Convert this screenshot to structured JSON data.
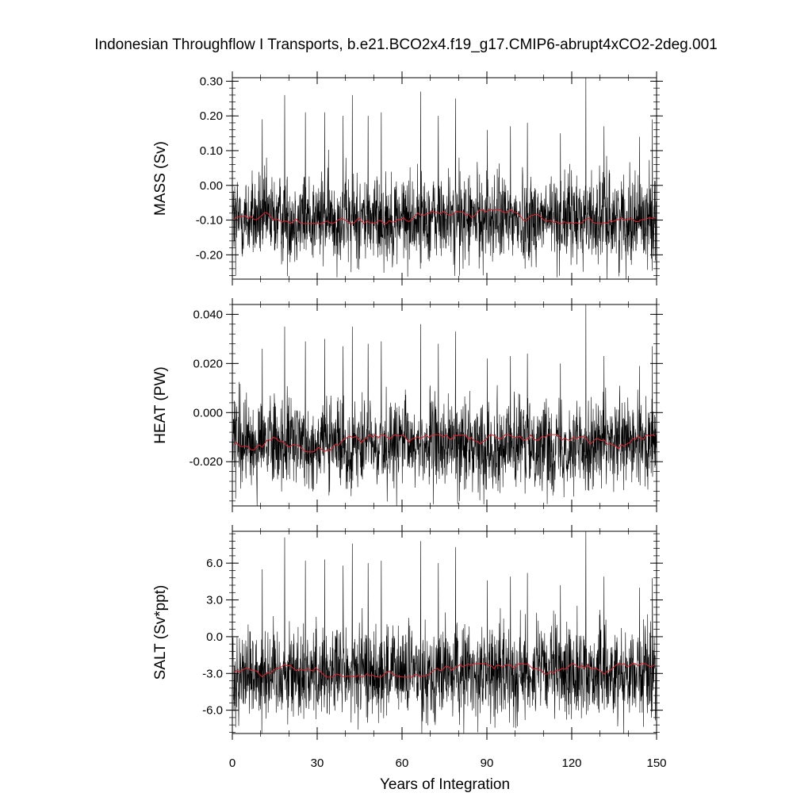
{
  "title": "Indonesian Throughflow I Transports, b.e21.BCO2x4.f19_g17.CMIP6-abrupt4xCO2-2deg.001",
  "xlabel": "Years of Integration",
  "xticks": [
    0,
    30,
    60,
    90,
    120,
    150
  ],
  "colors": {
    "monthly": "#000000",
    "annual": "#e0202a",
    "frame": "#000000"
  },
  "chart_data": [
    {
      "type": "line",
      "ylabel": "MASS (Sv)",
      "xlim": [
        0,
        150
      ],
      "ylim": [
        -0.27,
        0.31
      ],
      "yticks": [
        -0.2,
        -0.1,
        0.0,
        0.1,
        0.2,
        0.3
      ],
      "ytick_labels": [
        "-0.20",
        "-0.10",
        "0.00",
        "0.10",
        "0.20",
        "0.30"
      ],
      "series_summary": {
        "monthly_mean": -0.095,
        "monthly_amplitude": 0.085,
        "annual_mean_range": [
          -0.11,
          -0.07
        ]
      },
      "spikes": [
        {
          "x": 10.6,
          "y": 0.19
        },
        {
          "x": 18.5,
          "y": 0.26
        },
        {
          "x": 25.8,
          "y": 0.21
        },
        {
          "x": 32.7,
          "y": 0.21
        },
        {
          "x": 39.2,
          "y": 0.2
        },
        {
          "x": 42.4,
          "y": 0.26
        },
        {
          "x": 48.0,
          "y": 0.2
        },
        {
          "x": 52.7,
          "y": 0.21
        },
        {
          "x": 66.6,
          "y": 0.27
        },
        {
          "x": 72.8,
          "y": 0.2
        },
        {
          "x": 78.9,
          "y": 0.25
        },
        {
          "x": 90.2,
          "y": 0.16
        },
        {
          "x": 98.3,
          "y": 0.17
        },
        {
          "x": 104.3,
          "y": 0.18
        },
        {
          "x": 116.0,
          "y": 0.15
        },
        {
          "x": 125.0,
          "y": 0.31
        },
        {
          "x": 131.4,
          "y": 0.17
        },
        {
          "x": 144.0,
          "y": 0.14
        },
        {
          "x": 148.5,
          "y": 0.19
        }
      ],
      "dips": [
        {
          "x": 116.0,
          "y": -0.27
        },
        {
          "x": 80.3,
          "y": -0.26
        },
        {
          "x": 1.2,
          "y": -0.26
        },
        {
          "x": 42.0,
          "y": -0.25
        },
        {
          "x": 103.5,
          "y": -0.24
        }
      ]
    },
    {
      "type": "line",
      "ylabel": "HEAT (PW)",
      "xlim": [
        0,
        150
      ],
      "ylim": [
        -0.038,
        0.044
      ],
      "yticks": [
        -0.02,
        0.0,
        0.02,
        0.04
      ],
      "ytick_labels": [
        "-0.020",
        "0.000",
        "0.020",
        "0.040"
      ],
      "series_summary": {
        "monthly_mean": -0.013,
        "monthly_amplitude": 0.012,
        "annual_mean_range": [
          -0.016,
          -0.009
        ]
      },
      "spikes": [
        {
          "x": 10.6,
          "y": 0.026
        },
        {
          "x": 18.5,
          "y": 0.035
        },
        {
          "x": 25.8,
          "y": 0.029
        },
        {
          "x": 32.7,
          "y": 0.03
        },
        {
          "x": 39.2,
          "y": 0.027
        },
        {
          "x": 42.4,
          "y": 0.035
        },
        {
          "x": 48.0,
          "y": 0.028
        },
        {
          "x": 52.7,
          "y": 0.029
        },
        {
          "x": 66.6,
          "y": 0.036
        },
        {
          "x": 72.8,
          "y": 0.028
        },
        {
          "x": 78.9,
          "y": 0.033
        },
        {
          "x": 90.2,
          "y": 0.022
        },
        {
          "x": 98.3,
          "y": 0.023
        },
        {
          "x": 104.3,
          "y": 0.024
        },
        {
          "x": 116.0,
          "y": 0.02
        },
        {
          "x": 125.0,
          "y": 0.044
        },
        {
          "x": 131.4,
          "y": 0.023
        },
        {
          "x": 144.0,
          "y": 0.019
        },
        {
          "x": 148.5,
          "y": 0.027
        }
      ],
      "dips": [
        {
          "x": 116.0,
          "y": -0.038
        },
        {
          "x": 80.3,
          "y": -0.036
        },
        {
          "x": 1.2,
          "y": -0.035
        },
        {
          "x": 42.0,
          "y": -0.034
        },
        {
          "x": 103.5,
          "y": -0.033
        }
      ]
    },
    {
      "type": "line",
      "ylabel": "SALT (Sv*ppt)",
      "xlim": [
        0,
        150
      ],
      "ylim": [
        -7.9,
        8.6
      ],
      "yticks": [
        -6.0,
        -3.0,
        0.0,
        3.0,
        6.0
      ],
      "ytick_labels": [
        "-6.0",
        "-3.0",
        "0.0",
        "3.0",
        "6.0"
      ],
      "series_summary": {
        "monthly_mean": -2.9,
        "monthly_amplitude": 2.5,
        "annual_mean_range": [
          -3.3,
          -2.2
        ]
      },
      "spikes": [
        {
          "x": 10.6,
          "y": 5.5
        },
        {
          "x": 18.5,
          "y": 8.1
        },
        {
          "x": 25.8,
          "y": 6.2
        },
        {
          "x": 32.7,
          "y": 6.3
        },
        {
          "x": 39.2,
          "y": 5.8
        },
        {
          "x": 42.4,
          "y": 7.6
        },
        {
          "x": 48.0,
          "y": 6.0
        },
        {
          "x": 52.7,
          "y": 6.2
        },
        {
          "x": 66.6,
          "y": 7.8
        },
        {
          "x": 72.8,
          "y": 6.0
        },
        {
          "x": 78.9,
          "y": 7.3
        },
        {
          "x": 90.2,
          "y": 4.6
        },
        {
          "x": 98.3,
          "y": 4.9
        },
        {
          "x": 104.3,
          "y": 5.2
        },
        {
          "x": 116.0,
          "y": 4.2
        },
        {
          "x": 125.0,
          "y": 8.6
        },
        {
          "x": 131.4,
          "y": 4.9
        },
        {
          "x": 144.0,
          "y": 4.0
        },
        {
          "x": 148.5,
          "y": 4.8
        }
      ],
      "dips": [
        {
          "x": 116.0,
          "y": -7.6
        },
        {
          "x": 80.3,
          "y": -7.2
        },
        {
          "x": 1.2,
          "y": -7.4
        },
        {
          "x": 42.0,
          "y": -7.0
        },
        {
          "x": 103.5,
          "y": -6.8
        }
      ]
    }
  ]
}
